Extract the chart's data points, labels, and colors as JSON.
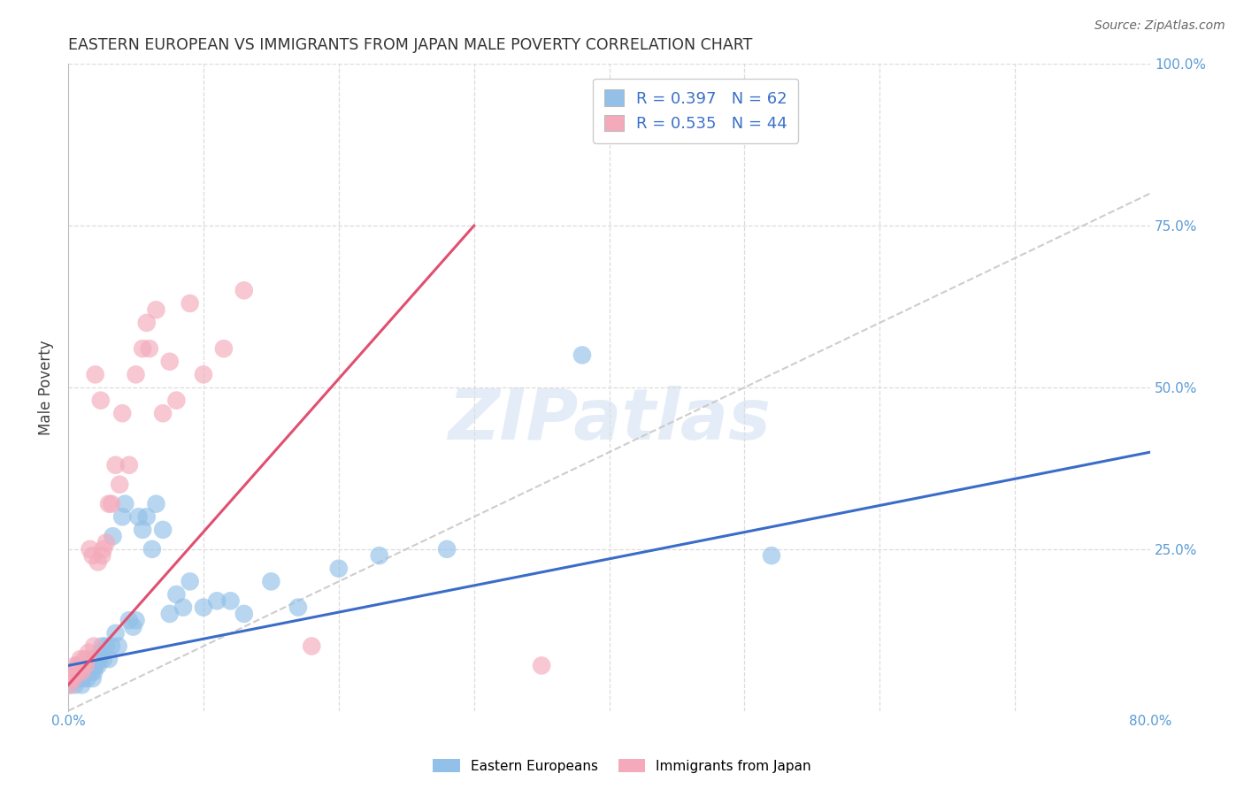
{
  "title": "EASTERN EUROPEAN VS IMMIGRANTS FROM JAPAN MALE POVERTY CORRELATION CHART",
  "source": "Source: ZipAtlas.com",
  "ylabel": "Male Poverty",
  "xlim": [
    0,
    0.8
  ],
  "ylim": [
    0,
    1.0
  ],
  "blue_color": "#92C0E8",
  "pink_color": "#F4AABB",
  "blue_line_color": "#3A6CC8",
  "pink_line_color": "#E05070",
  "diagonal_color": "#C8C8C8",
  "grid_color": "#DCDCDC",
  "R_blue": 0.397,
  "N_blue": 62,
  "R_pink": 0.535,
  "N_pink": 44,
  "legend_label_blue": "Eastern Europeans",
  "legend_label_pink": "Immigrants from Japan",
  "watermark": "ZIPatlas",
  "blue_x": [
    0.001,
    0.002,
    0.003,
    0.004,
    0.005,
    0.005,
    0.006,
    0.007,
    0.007,
    0.008,
    0.009,
    0.01,
    0.01,
    0.011,
    0.012,
    0.013,
    0.014,
    0.015,
    0.016,
    0.017,
    0.018,
    0.018,
    0.019,
    0.02,
    0.021,
    0.022,
    0.023,
    0.024,
    0.025,
    0.026,
    0.028,
    0.03,
    0.032,
    0.033,
    0.035,
    0.037,
    0.04,
    0.042,
    0.045,
    0.048,
    0.05,
    0.052,
    0.055,
    0.058,
    0.062,
    0.065,
    0.07,
    0.075,
    0.08,
    0.085,
    0.09,
    0.1,
    0.11,
    0.12,
    0.13,
    0.15,
    0.17,
    0.2,
    0.23,
    0.28,
    0.38,
    0.52
  ],
  "blue_y": [
    0.04,
    0.05,
    0.06,
    0.05,
    0.04,
    0.06,
    0.05,
    0.06,
    0.07,
    0.05,
    0.06,
    0.04,
    0.07,
    0.05,
    0.06,
    0.07,
    0.05,
    0.06,
    0.07,
    0.06,
    0.08,
    0.05,
    0.06,
    0.07,
    0.08,
    0.07,
    0.08,
    0.09,
    0.1,
    0.08,
    0.1,
    0.08,
    0.1,
    0.27,
    0.12,
    0.1,
    0.3,
    0.32,
    0.14,
    0.13,
    0.14,
    0.3,
    0.28,
    0.3,
    0.25,
    0.32,
    0.28,
    0.15,
    0.18,
    0.16,
    0.2,
    0.16,
    0.17,
    0.17,
    0.15,
    0.2,
    0.16,
    0.22,
    0.24,
    0.25,
    0.55,
    0.24
  ],
  "pink_x": [
    0.001,
    0.002,
    0.003,
    0.004,
    0.005,
    0.006,
    0.007,
    0.008,
    0.009,
    0.01,
    0.011,
    0.012,
    0.013,
    0.014,
    0.015,
    0.016,
    0.018,
    0.019,
    0.02,
    0.022,
    0.024,
    0.025,
    0.026,
    0.028,
    0.03,
    0.032,
    0.035,
    0.038,
    0.04,
    0.045,
    0.05,
    0.055,
    0.058,
    0.06,
    0.065,
    0.07,
    0.075,
    0.08,
    0.09,
    0.1,
    0.115,
    0.13,
    0.18,
    0.35
  ],
  "pink_y": [
    0.04,
    0.05,
    0.06,
    0.05,
    0.07,
    0.06,
    0.06,
    0.07,
    0.08,
    0.06,
    0.07,
    0.08,
    0.07,
    0.08,
    0.09,
    0.25,
    0.24,
    0.1,
    0.52,
    0.23,
    0.48,
    0.24,
    0.25,
    0.26,
    0.32,
    0.32,
    0.38,
    0.35,
    0.46,
    0.38,
    0.52,
    0.56,
    0.6,
    0.56,
    0.62,
    0.46,
    0.54,
    0.48,
    0.63,
    0.52,
    0.56,
    0.65,
    0.1,
    0.07
  ]
}
